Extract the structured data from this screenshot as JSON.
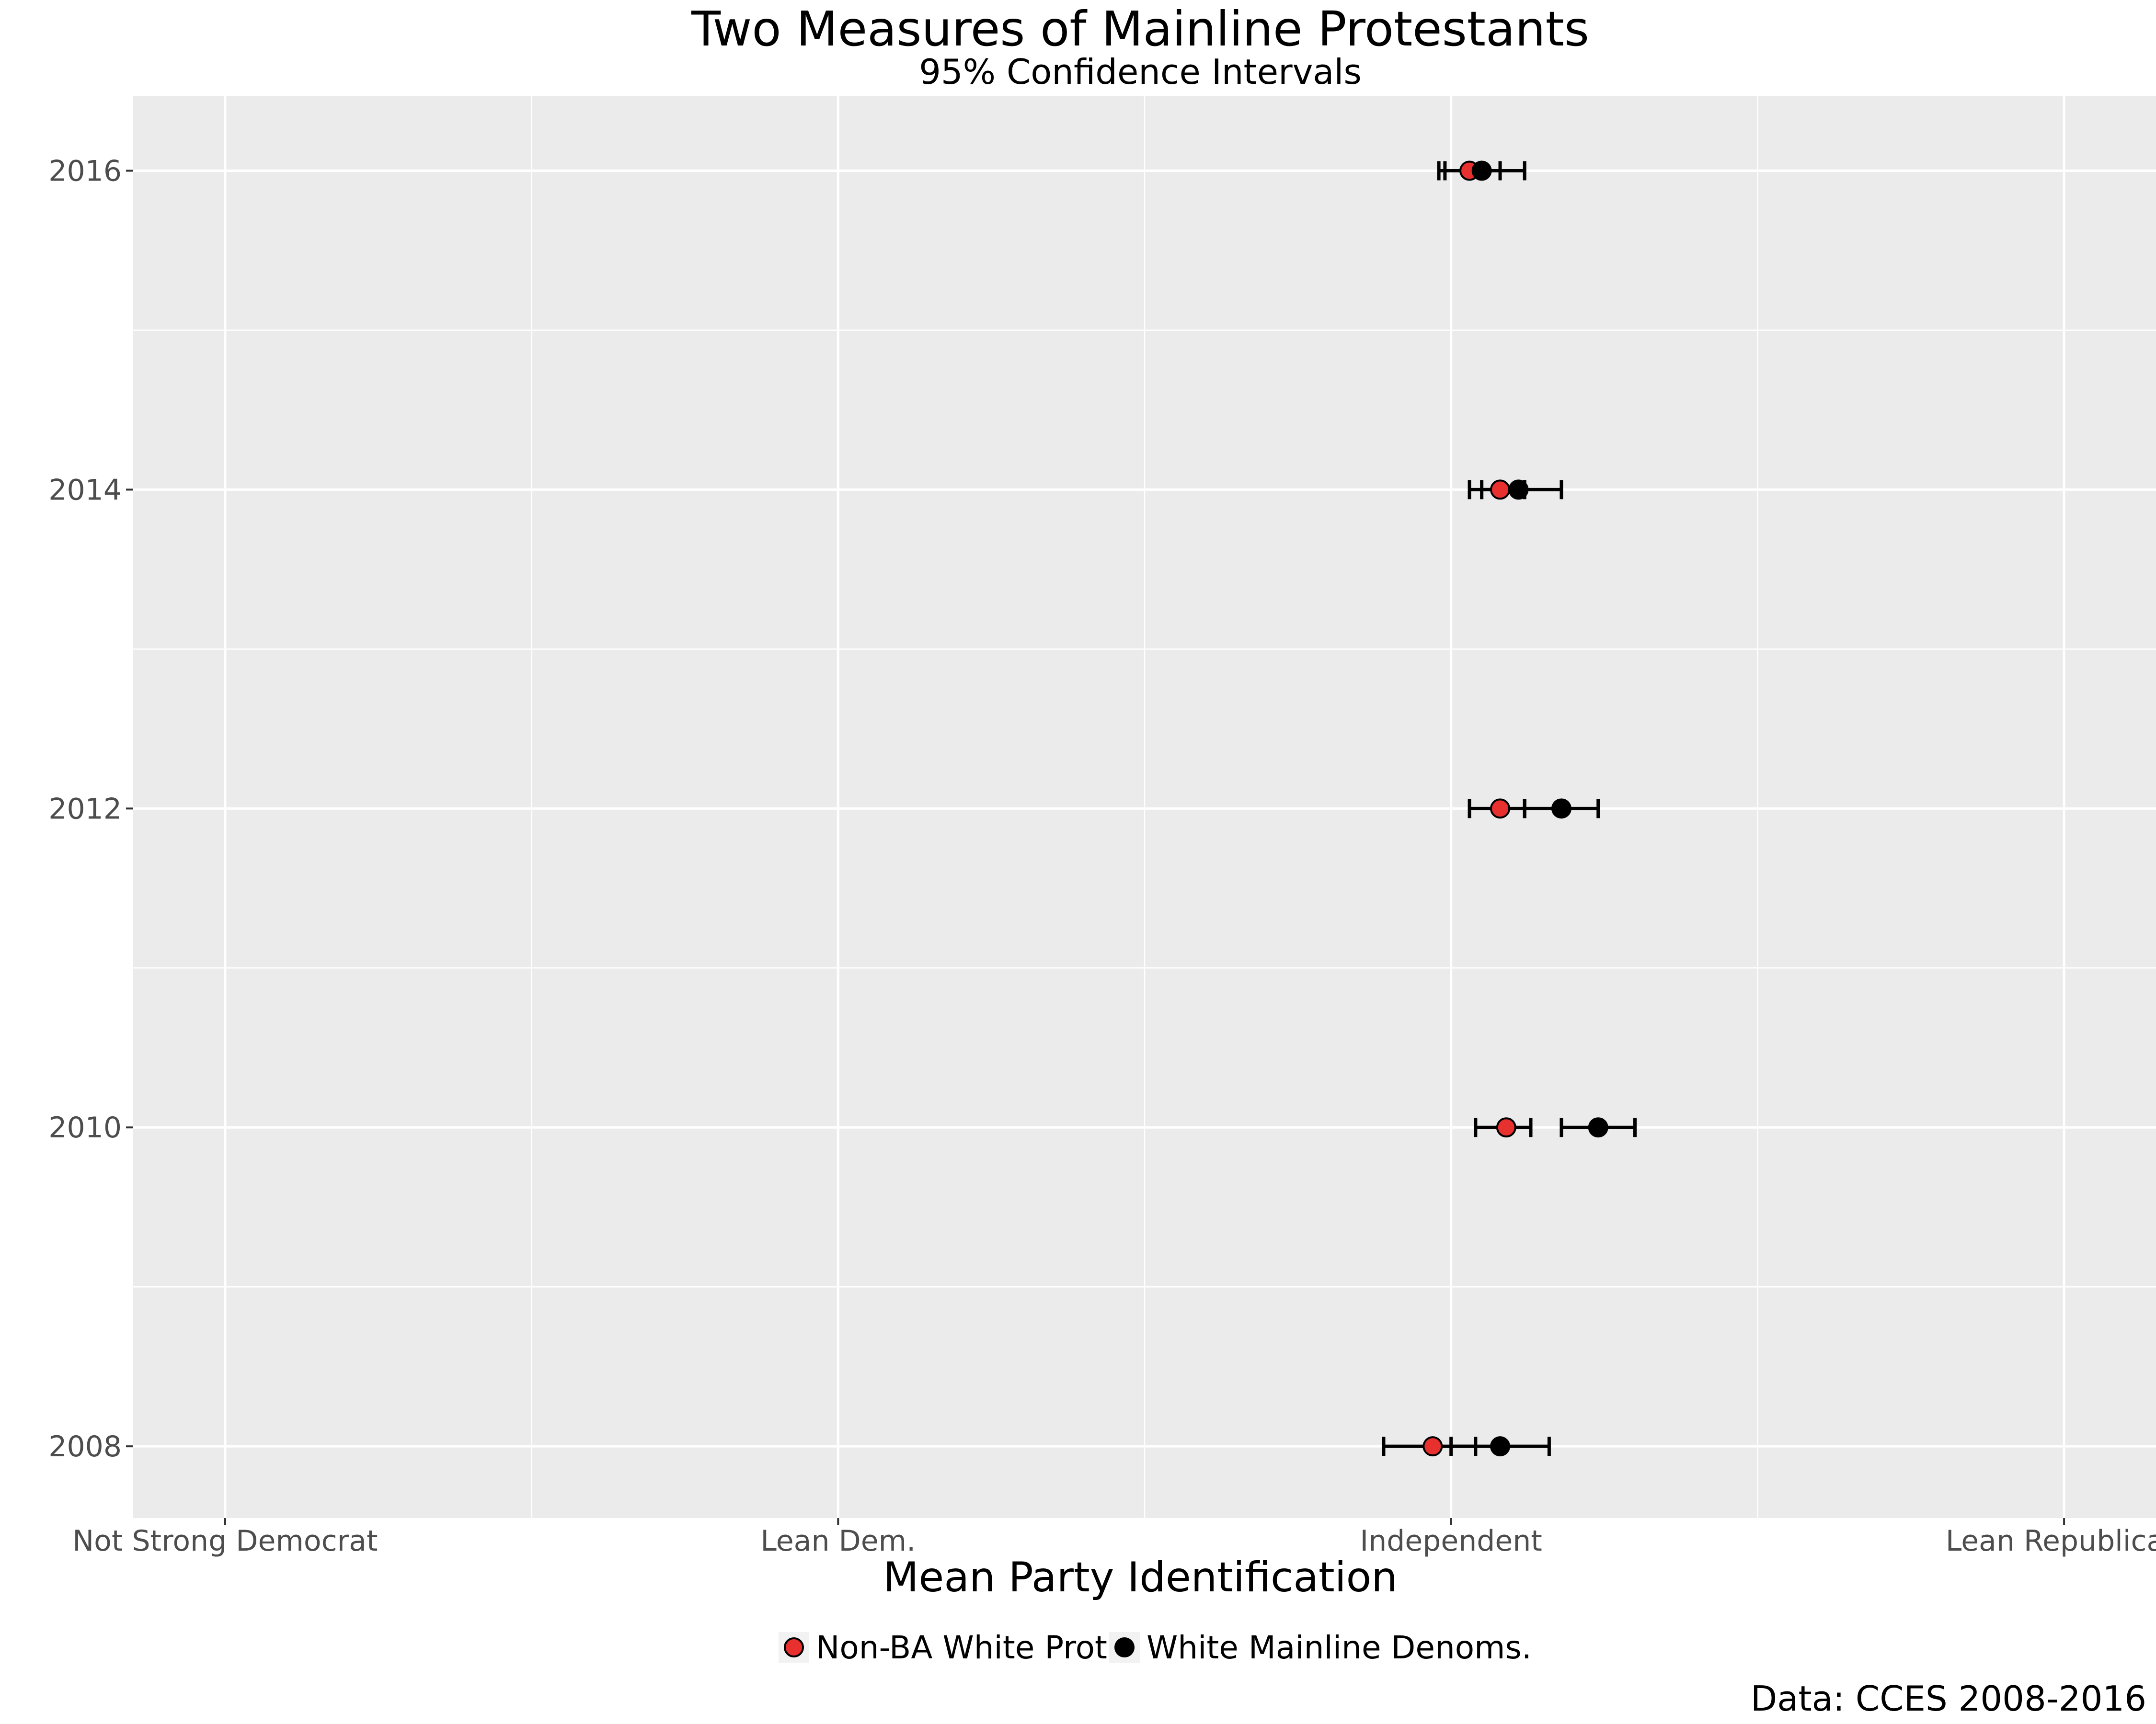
{
  "chart_data": {
    "type": "scatter",
    "title": "Two Measures of Mainline Protestants",
    "subtitle": "95% Confidence Intervals",
    "xlabel": "Mean Party Identification",
    "ylabel": "",
    "caption": "Data: CCES 2008-2016",
    "x_tick_values": [
      2,
      3,
      4,
      5
    ],
    "x_tick_labels": [
      "Not Strong Democrat",
      "Lean Dem.",
      "Independent",
      "Lean Republican"
    ],
    "xlim": [
      1.85,
      5.15
    ],
    "y_tick_values": [
      2008,
      2010,
      2012,
      2014,
      2016
    ],
    "y_tick_labels": [
      "2008",
      "2010",
      "2012",
      "2014",
      "2016"
    ],
    "ylim": [
      2007.55,
      2016.47
    ],
    "grid": true,
    "legend_position": "bottom",
    "series": [
      {
        "name": "Non-BA White Prot.",
        "color": "#e8312f",
        "points": [
          {
            "x": 2008,
            "y": 3.97,
            "lo": 3.89,
            "hi": 4.04
          },
          {
            "x": 2010,
            "y": 4.09,
            "lo": 4.04,
            "hi": 4.13
          },
          {
            "x": 2012,
            "y": 4.08,
            "lo": 4.03,
            "hi": 4.12
          },
          {
            "x": 2014,
            "y": 4.08,
            "lo": 4.03,
            "hi": 4.12
          },
          {
            "x": 2016,
            "y": 4.03,
            "lo": 3.98,
            "hi": 4.08
          }
        ]
      },
      {
        "name": "White Mainline Denoms.",
        "color": "#000000",
        "points": [
          {
            "x": 2008,
            "y": 4.08,
            "lo": 4.0,
            "hi": 4.16
          },
          {
            "x": 2010,
            "y": 4.24,
            "lo": 4.18,
            "hi": 4.3
          },
          {
            "x": 2012,
            "y": 4.18,
            "lo": 4.12,
            "hi": 4.24
          },
          {
            "x": 2014,
            "y": 4.11,
            "lo": 4.05,
            "hi": 4.18
          },
          {
            "x": 2016,
            "y": 4.05,
            "lo": 3.99,
            "hi": 4.12
          }
        ]
      }
    ]
  }
}
